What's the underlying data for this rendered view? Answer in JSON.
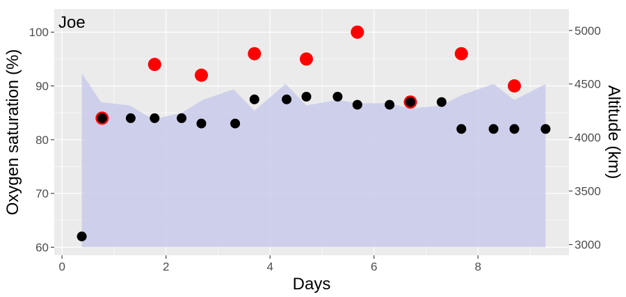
{
  "chart_data": {
    "type": "scatter",
    "annotation": "Joe",
    "xlabel": "Days",
    "ylabel": "Oxygen saturation (%)",
    "y2label": "Altitude (km)",
    "xlim": [
      -0.15,
      9.75
    ],
    "ylim": [
      58.5,
      104.3
    ],
    "y2lim": [
      2900,
      5200
    ],
    "x_ticks": [
      0,
      2,
      4,
      6,
      8
    ],
    "x_tick_labels": [
      "0",
      "2",
      "4",
      "6",
      "8"
    ],
    "y_ticks": [
      60,
      70,
      80,
      90,
      100
    ],
    "y_tick_labels": [
      "60",
      "70",
      "80",
      "90",
      "100"
    ],
    "y2_ticks": [
      3000,
      3500,
      4000,
      4500,
      5000
    ],
    "y2_tick_labels": [
      "3000",
      "3500",
      "4000",
      "4500",
      "5000"
    ],
    "grid": true,
    "colors": {
      "panel": "#ebebeb",
      "grid": "#ffffff",
      "area_fill": "#c9cbeb",
      "black_points": "#000000",
      "red_points": "#ff0000"
    },
    "altitude_area": {
      "x": [
        0.38,
        0.75,
        1.3,
        1.75,
        2.3,
        2.7,
        3.3,
        3.7,
        4.3,
        4.7,
        5.3,
        5.7,
        6.3,
        6.7,
        7.3,
        7.7,
        8.3,
        8.7,
        9.3
      ],
      "y": [
        4600,
        4330,
        4300,
        4170,
        4230,
        4350,
        4450,
        4250,
        4500,
        4300,
        4350,
        4320,
        4320,
        4270,
        4300,
        4400,
        4500,
        4350,
        4500
      ]
    },
    "series": [
      {
        "color": "black",
        "x": [
          0.38,
          0.77,
          1.32,
          1.78,
          2.3,
          2.68,
          3.33,
          3.7,
          4.32,
          4.7,
          5.3,
          5.68,
          6.3,
          6.7,
          7.3,
          7.68,
          8.3,
          8.7,
          9.3
        ],
        "y": [
          62,
          84,
          84,
          84,
          84,
          83,
          83,
          87.5,
          87.5,
          88,
          88,
          86.5,
          86.5,
          87,
          87,
          82,
          82,
          82,
          82
        ]
      },
      {
        "color": "red",
        "x": [
          0.77,
          1.78,
          2.68,
          3.7,
          4.7,
          5.68,
          6.7,
          7.68,
          8.7
        ],
        "y": [
          84,
          94,
          92,
          96,
          95,
          100,
          87,
          96,
          90
        ]
      }
    ]
  }
}
